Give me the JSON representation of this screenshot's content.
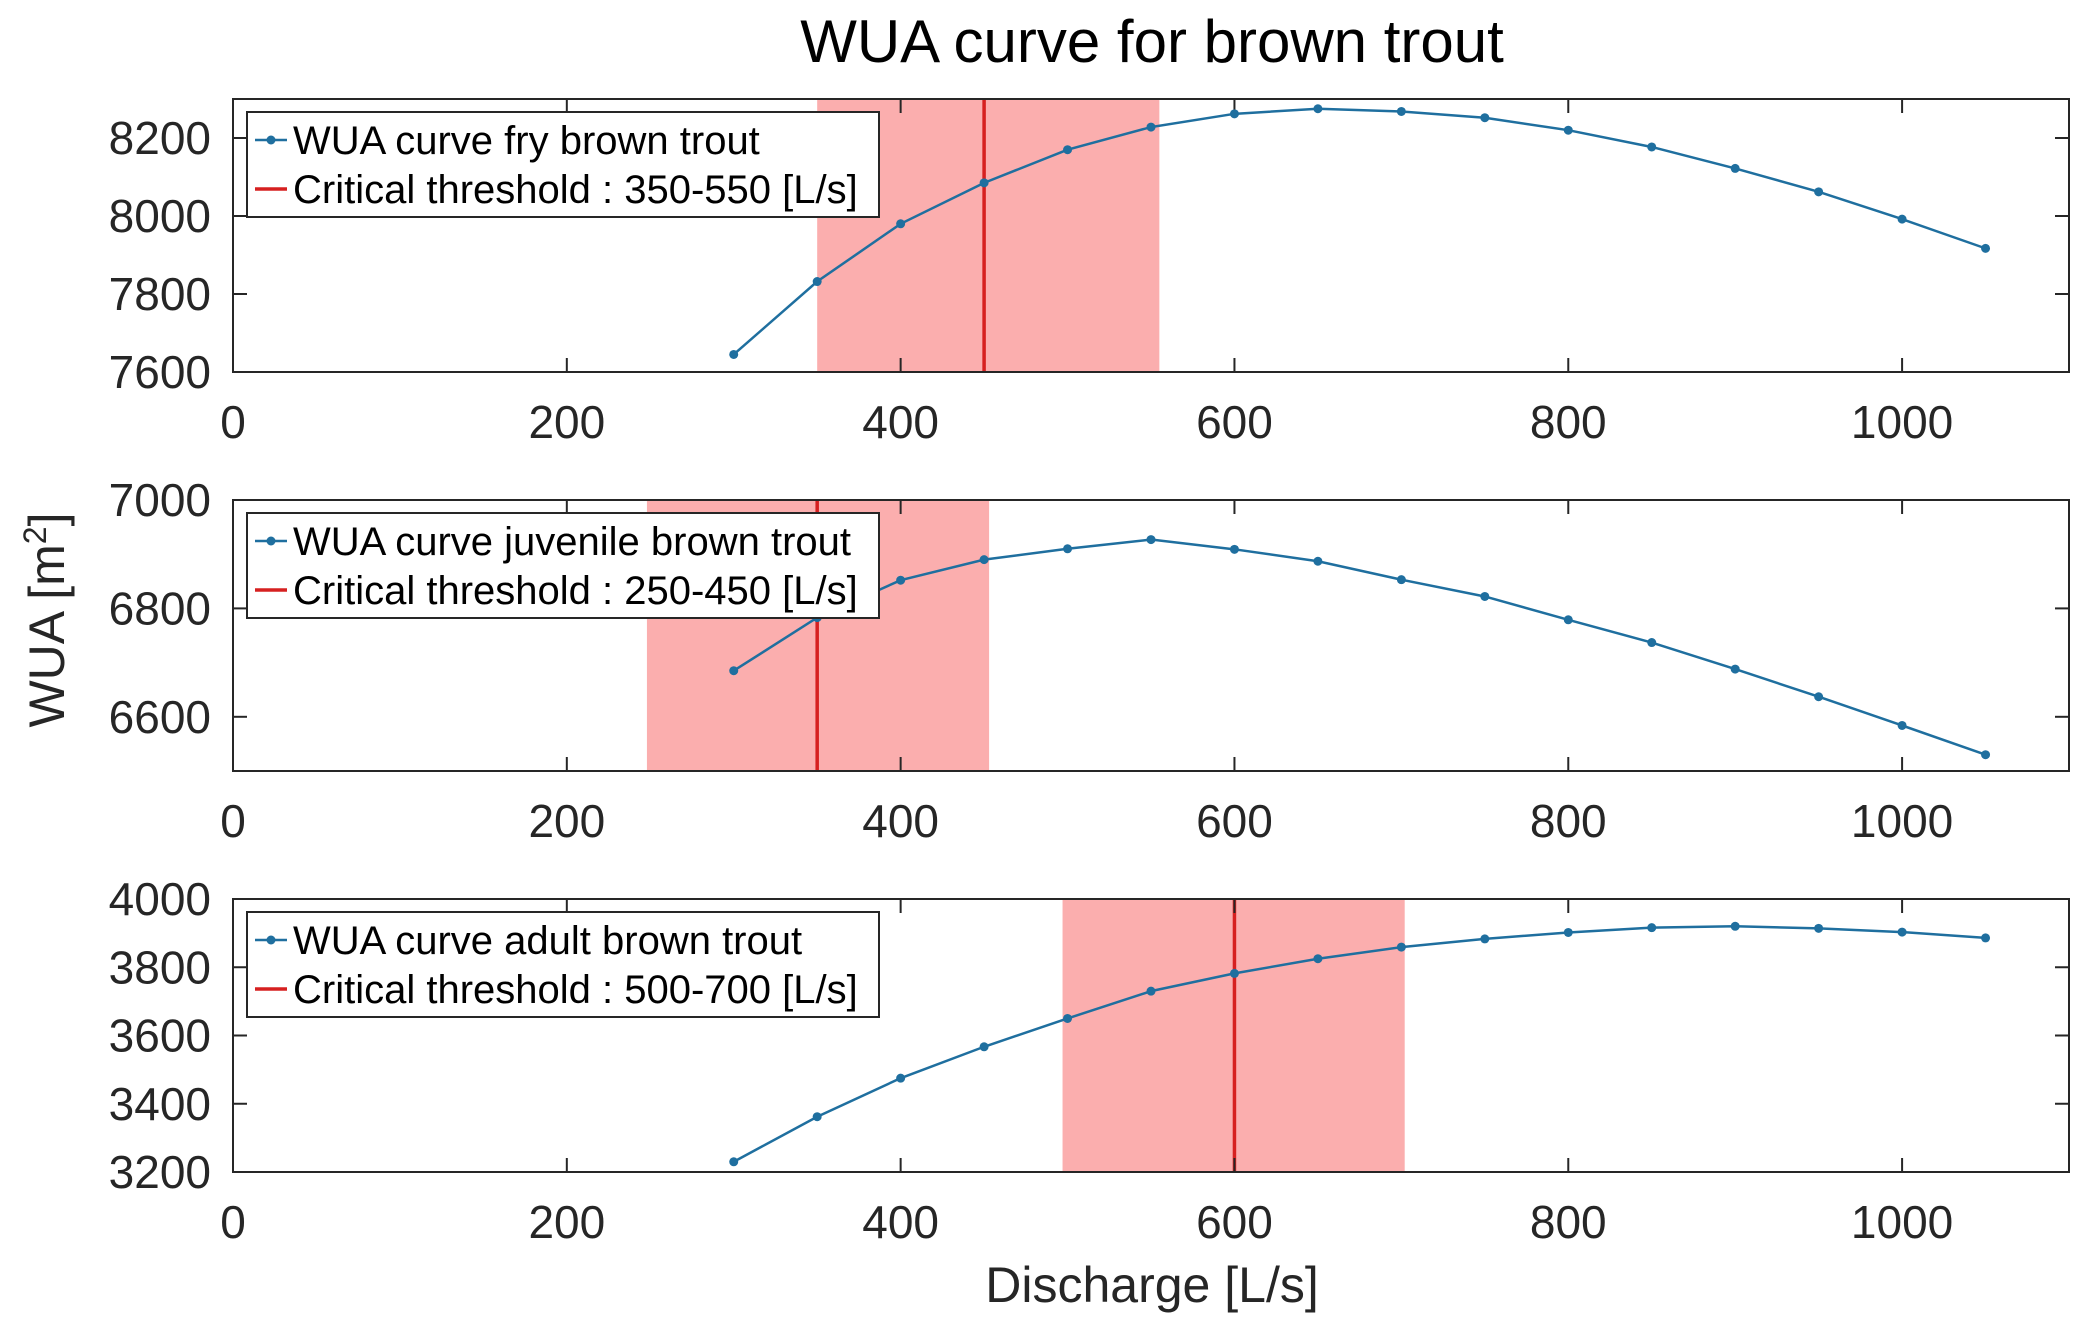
{
  "chart_data": {
    "title": "WUA curve for brown trout",
    "xlabel": "Discharge [L/s]",
    "ylabel": "WUA [m",
    "ylabel_sup": "2",
    "ylabel_end": "]",
    "colors": {
      "series": "#1f6f9f",
      "threshold_line": "#d62020",
      "threshold_band": "#fbaeae"
    },
    "panels": [
      {
        "type": "line",
        "xlim": [
          0,
          1100
        ],
        "ylim": [
          7600,
          8300
        ],
        "xticks": [
          0,
          200,
          400,
          600,
          800,
          1000
        ],
        "yticks": [
          7600,
          7800,
          8000,
          8200
        ],
        "series": {
          "name": "WUA curve fry brown trout",
          "x": [
            300,
            350,
            400,
            450,
            500,
            550,
            600,
            650,
            700,
            750,
            800,
            850,
            900,
            950,
            1000,
            1050
          ],
          "y": [
            7645,
            7832,
            7980,
            8085,
            8170,
            8228,
            8262,
            8275,
            8268,
            8252,
            8220,
            8177,
            8122,
            8062,
            7992,
            7917
          ]
        },
        "threshold": {
          "name": "Critical threshold : 350-550 [L/s]",
          "band": [
            350,
            555
          ],
          "line": 450
        }
      },
      {
        "type": "line",
        "xlim": [
          0,
          1100
        ],
        "ylim": [
          6500,
          7000
        ],
        "xticks": [
          0,
          200,
          400,
          600,
          800,
          1000
        ],
        "yticks": [
          6600,
          6800,
          7000
        ],
        "series": {
          "name": "WUA curve juvenile brown trout",
          "x": [
            300,
            350,
            400,
            450,
            500,
            550,
            600,
            650,
            700,
            750,
            800,
            850,
            900,
            950,
            1000,
            1050
          ],
          "y": [
            6685,
            6783,
            6852,
            6890,
            6910,
            6927,
            6909,
            6887,
            6853,
            6822,
            6779,
            6737,
            6688,
            6637,
            6584,
            6530
          ]
        },
        "threshold": {
          "name": "Critical threshold : 250-450 [L/s]",
          "band": [
            248,
            453
          ],
          "line": 350
        }
      },
      {
        "type": "line",
        "xlim": [
          0,
          1100
        ],
        "ylim": [
          3200,
          4000
        ],
        "xticks": [
          0,
          200,
          400,
          600,
          800,
          1000
        ],
        "yticks": [
          3200,
          3400,
          3600,
          3800,
          4000
        ],
        "series": {
          "name": "WUA curve adult brown trout",
          "x": [
            300,
            350,
            400,
            450,
            500,
            550,
            600,
            650,
            700,
            750,
            800,
            850,
            900,
            950,
            1000,
            1050
          ],
          "y": [
            3230,
            3362,
            3475,
            3567,
            3650,
            3730,
            3782,
            3825,
            3859,
            3883,
            3902,
            3916,
            3920,
            3914,
            3903,
            3886
          ]
        },
        "threshold": {
          "name": "Critical threshold : 500-700 [L/s]",
          "band": [
            497,
            702
          ],
          "line": 600
        }
      }
    ]
  }
}
